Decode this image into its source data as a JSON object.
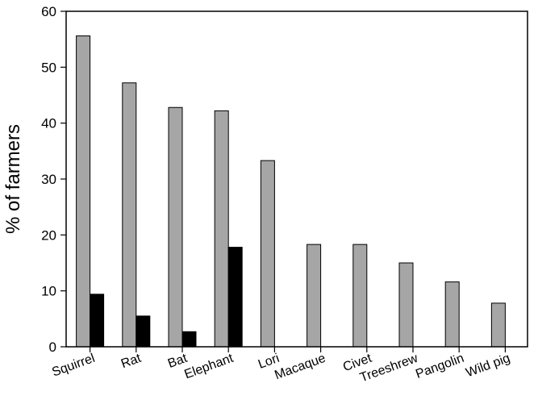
{
  "chart_data": {
    "type": "bar",
    "title": "",
    "xlabel": "",
    "ylabel": "% of farmers",
    "ylim": [
      0,
      60
    ],
    "yticks": [
      0,
      10,
      20,
      30,
      40,
      50,
      60
    ],
    "grid": false,
    "legend": "none",
    "categories": [
      "Squirrel",
      "Rat",
      "Bat",
      "Elephant",
      "Lori",
      "Macaque",
      "Civet",
      "Treeshrew",
      "Pangolin",
      "Wild pig"
    ],
    "series": [
      {
        "color": "#a6a6a6",
        "values": [
          55.6,
          47.2,
          42.8,
          42.2,
          33.3,
          18.3,
          18.3,
          15.0,
          11.6,
          7.8
        ]
      },
      {
        "color": "#000000",
        "values": [
          9.4,
          5.5,
          2.7,
          17.8,
          0,
          0,
          0,
          0,
          0,
          0
        ]
      }
    ]
  }
}
